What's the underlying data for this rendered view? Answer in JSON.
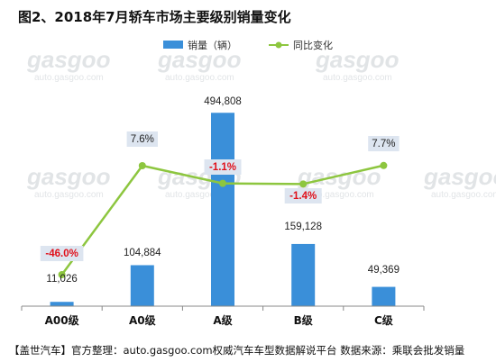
{
  "title": "图2、2018年7月轿车市场主要级别销量变化",
  "footer": "【盖世汽车】官方整理：auto.gasgoo.com权威汽车车型数据解说平台 数据来源：乘联会批发销量",
  "watermark": {
    "logo": "gasgoo",
    "url": "auto.gasgoo.com",
    "brand": "盖世汽车"
  },
  "colors": {
    "bar": "#3a8fd9",
    "line": "#8dc63f",
    "pct_positive": "#222222",
    "pct_negative": "#e0101a",
    "pct_box": "#dde5f0",
    "axis": "#888888"
  },
  "chart_data": {
    "type": "bar",
    "title": "图2、2018年7月轿车市场主要级别销量变化",
    "categories": [
      "A00级",
      "A0级",
      "A级",
      "B级",
      "C级"
    ],
    "series": [
      {
        "name": "销量（辆）",
        "type": "bar",
        "axis": "left",
        "values": [
          11026,
          104884,
          494808,
          159128,
          49369
        ],
        "labels": [
          "11,026",
          "104,884",
          "494,808",
          "159,128",
          "49,369"
        ]
      },
      {
        "name": "同比变化",
        "type": "line",
        "axis": "right",
        "values": [
          -46.0,
          7.6,
          -1.1,
          -1.4,
          7.7
        ],
        "labels": [
          "-46.0%",
          "7.6%",
          "-1.1%",
          "-1.4%",
          "7.7%"
        ]
      }
    ],
    "legend_position": "top-right",
    "grid": false
  }
}
